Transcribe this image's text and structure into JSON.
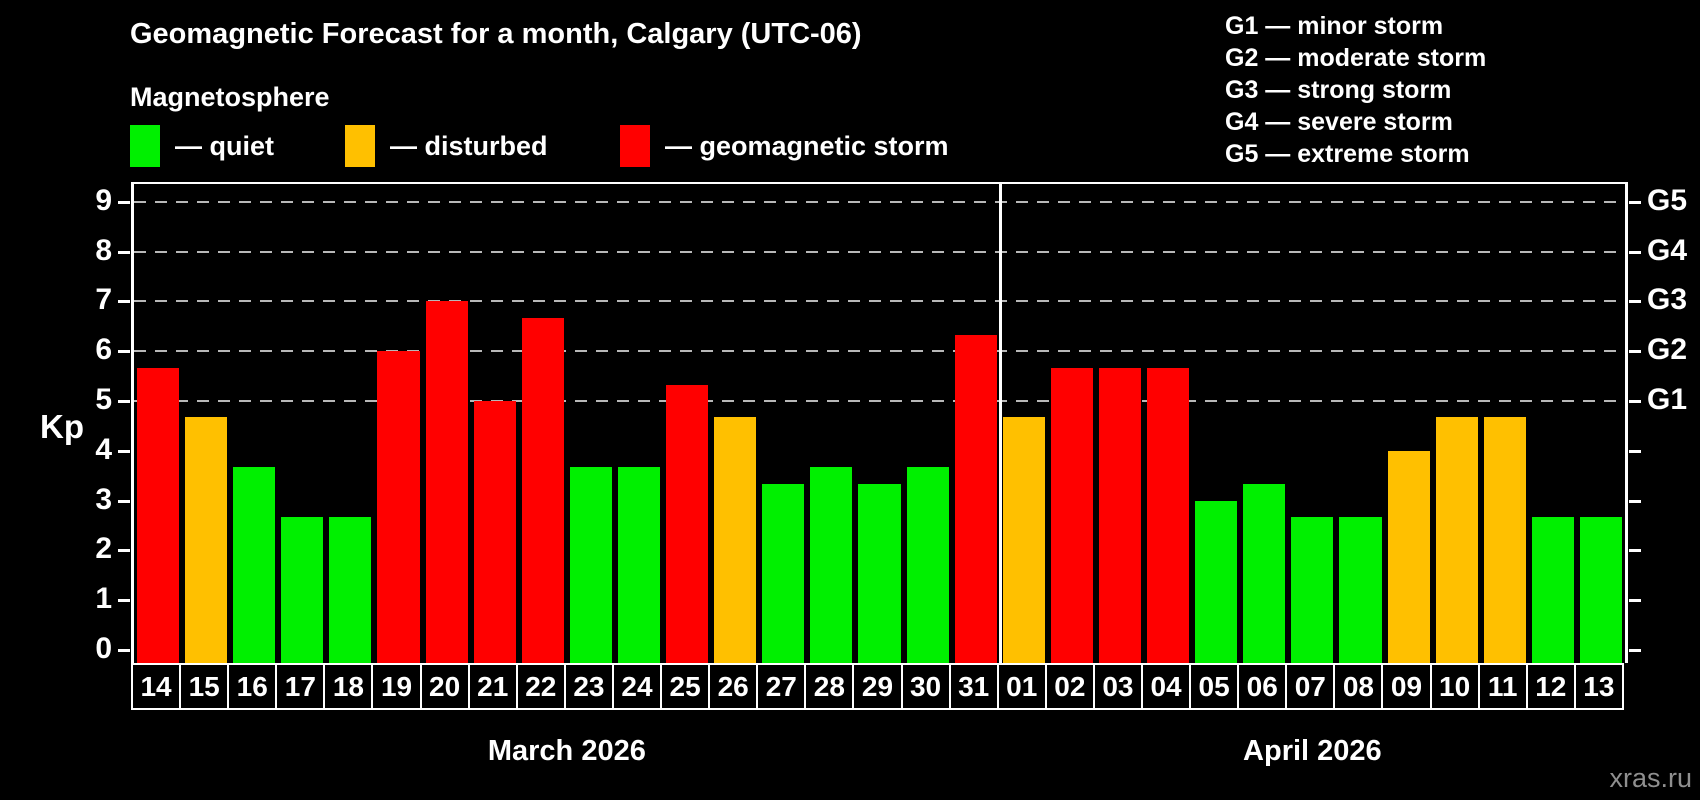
{
  "title": "Geomagnetic Forecast for a month, Calgary (UTC-06)",
  "magnetosphere_legend": {
    "heading": "Magnetosphere",
    "items": [
      {
        "name": "quiet",
        "label": "— quiet",
        "color": "#00f000"
      },
      {
        "name": "disturbed",
        "label": "— disturbed",
        "color": "#ffc000"
      },
      {
        "name": "storm",
        "label": "— geomagnetic storm",
        "color": "#ff0000"
      }
    ]
  },
  "storm_scale_legend": {
    "items": [
      {
        "label": "G1 — minor storm"
      },
      {
        "label": "G2 — moderate storm"
      },
      {
        "label": "G3 — strong storm"
      },
      {
        "label": "G4 — severe storm"
      },
      {
        "label": "G5 — extreme storm"
      }
    ]
  },
  "watermark": "xras.ru",
  "chart_data": {
    "type": "bar",
    "ylabel": "Kp",
    "y_ticks": [
      0,
      1,
      2,
      3,
      4,
      5,
      6,
      7,
      8,
      9
    ],
    "ylim": [
      -0.26,
      9.35
    ],
    "grid": "dashed horizontal lines only at storm levels Kp 5-9",
    "gridlines_at_kp": [
      5,
      6,
      7,
      8,
      9
    ],
    "legend_position": "top-left",
    "colors": {
      "quiet": "#00f000",
      "disturbed": "#ffc000",
      "storm": "#ff0000"
    },
    "right_axis": {
      "labels": [
        {
          "label": "G1",
          "kp": 5
        },
        {
          "label": "G2",
          "kp": 6
        },
        {
          "label": "G3",
          "kp": 7
        },
        {
          "label": "G4",
          "kp": 8
        },
        {
          "label": "G5",
          "kp": 9
        }
      ]
    },
    "groups": [
      {
        "label": "March 2026",
        "days": [
          {
            "day": "14",
            "kp": 5.67,
            "status": "storm"
          },
          {
            "day": "15",
            "kp": 4.67,
            "status": "disturbed"
          },
          {
            "day": "16",
            "kp": 3.67,
            "status": "quiet"
          },
          {
            "day": "17",
            "kp": 2.67,
            "status": "quiet"
          },
          {
            "day": "18",
            "kp": 2.67,
            "status": "quiet"
          },
          {
            "day": "19",
            "kp": 6.0,
            "status": "storm"
          },
          {
            "day": "20",
            "kp": 7.0,
            "status": "storm"
          },
          {
            "day": "21",
            "kp": 5.0,
            "status": "storm"
          },
          {
            "day": "22",
            "kp": 6.67,
            "status": "storm"
          },
          {
            "day": "23",
            "kp": 3.67,
            "status": "quiet"
          },
          {
            "day": "24",
            "kp": 3.67,
            "status": "quiet"
          },
          {
            "day": "25",
            "kp": 5.33,
            "status": "storm"
          },
          {
            "day": "26",
            "kp": 4.67,
            "status": "disturbed"
          },
          {
            "day": "27",
            "kp": 3.33,
            "status": "quiet"
          },
          {
            "day": "28",
            "kp": 3.67,
            "status": "quiet"
          },
          {
            "day": "29",
            "kp": 3.33,
            "status": "quiet"
          },
          {
            "day": "30",
            "kp": 3.67,
            "status": "quiet"
          },
          {
            "day": "31",
            "kp": 6.33,
            "status": "storm"
          }
        ]
      },
      {
        "label": "April 2026",
        "days": [
          {
            "day": "01",
            "kp": 4.67,
            "status": "disturbed"
          },
          {
            "day": "02",
            "kp": 5.67,
            "status": "storm"
          },
          {
            "day": "03",
            "kp": 5.67,
            "status": "storm"
          },
          {
            "day": "04",
            "kp": 5.67,
            "status": "storm"
          },
          {
            "day": "05",
            "kp": 3.0,
            "status": "quiet"
          },
          {
            "day": "06",
            "kp": 3.33,
            "status": "quiet"
          },
          {
            "day": "07",
            "kp": 2.67,
            "status": "quiet"
          },
          {
            "day": "08",
            "kp": 2.67,
            "status": "quiet"
          },
          {
            "day": "09",
            "kp": 4.0,
            "status": "disturbed"
          },
          {
            "day": "10",
            "kp": 4.67,
            "status": "disturbed"
          },
          {
            "day": "11",
            "kp": 4.67,
            "status": "disturbed"
          },
          {
            "day": "12",
            "kp": 2.67,
            "status": "quiet"
          },
          {
            "day": "13",
            "kp": 2.67,
            "status": "quiet"
          }
        ]
      }
    ]
  }
}
